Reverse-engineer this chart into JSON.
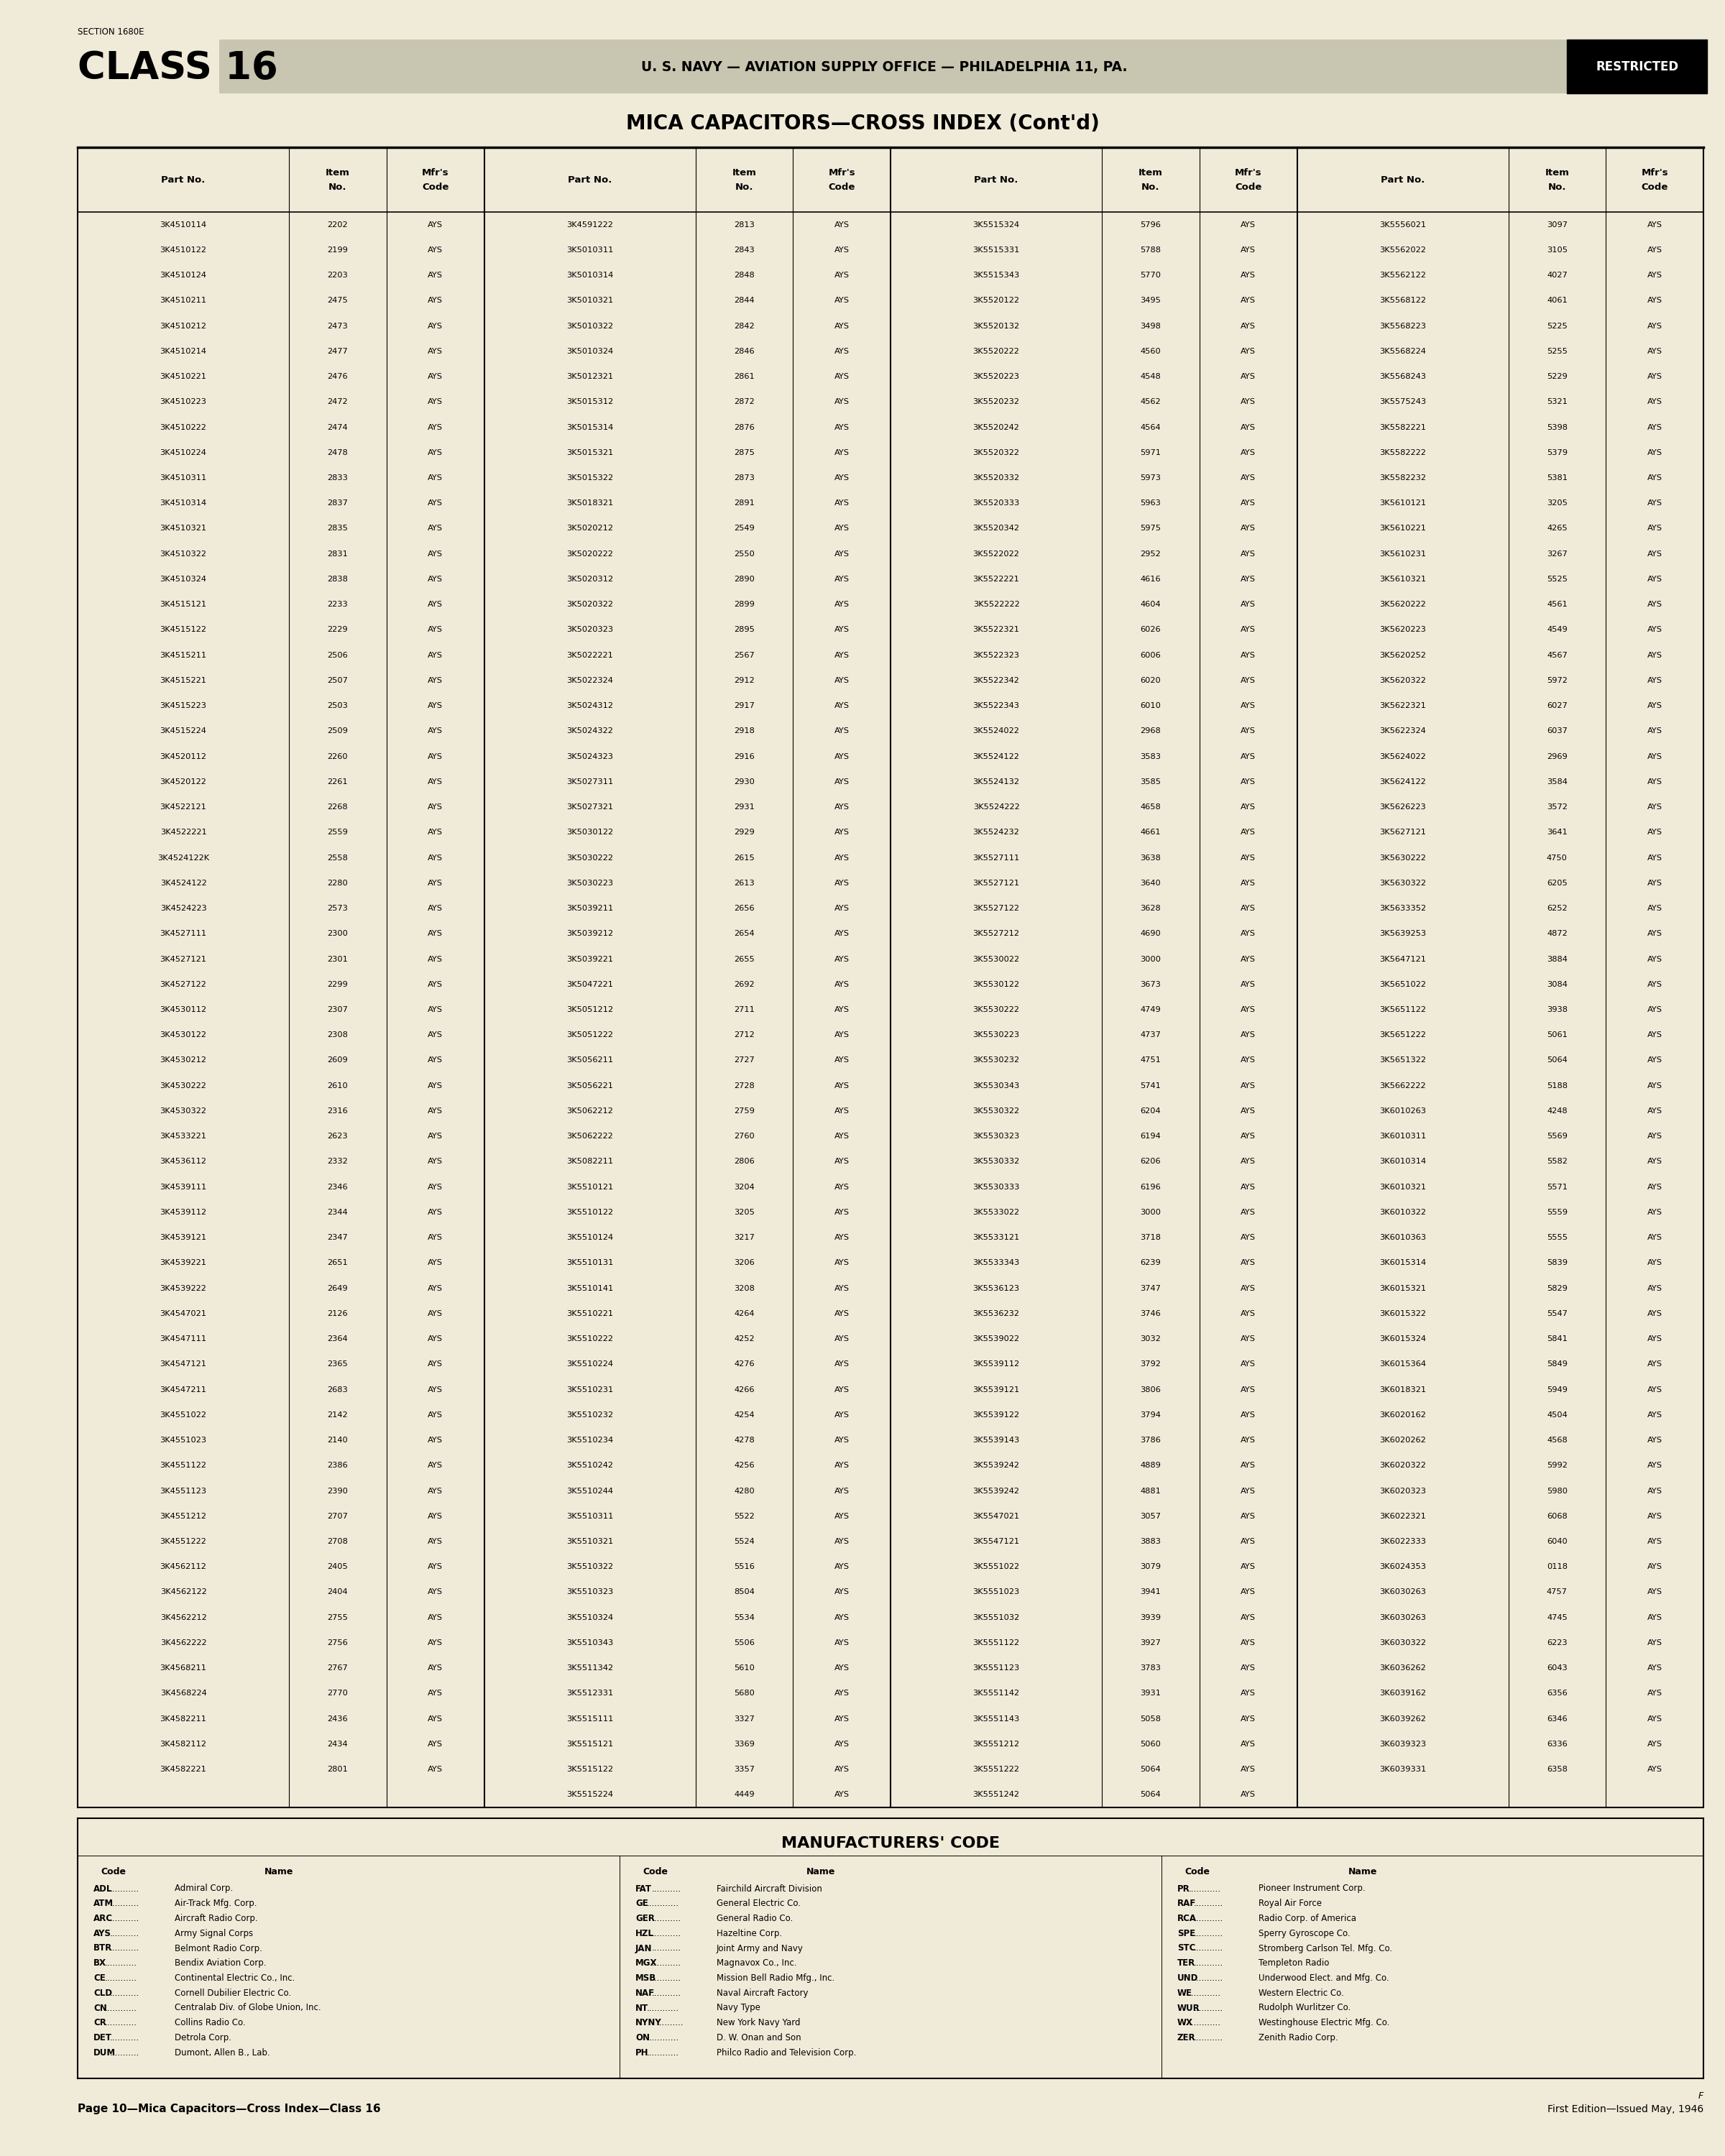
{
  "bg_color": "#f0ead8",
  "section_text": "SECTION 1680E",
  "class_text": "CLASS 16",
  "header_text": "U. S. NAVY — AVIATION SUPPLY OFFICE — PHILADELPHIA 11, PA.",
  "restricted_text": "RESTRICTED",
  "title": "MICA CAPACITORS—CROSS INDEX (Cont'd)",
  "table_data": [
    [
      "3K4510114",
      "2202",
      "AYS",
      "3K4591222",
      "2813",
      "AYS",
      "3K5515324",
      "5796",
      "AYS",
      "3K5556021",
      "3097",
      "AYS"
    ],
    [
      "3K4510122",
      "2199",
      "AYS",
      "3K5010311",
      "2843",
      "AYS",
      "3K5515331",
      "5788",
      "AYS",
      "3K5562022",
      "3105",
      "AYS"
    ],
    [
      "3K4510124",
      "2203",
      "AYS",
      "3K5010314",
      "2848",
      "AYS",
      "3K5515343",
      "5770",
      "AYS",
      "3K5562122",
      "4027",
      "AYS"
    ],
    [
      "3K4510211",
      "2475",
      "AYS",
      "3K5010321",
      "2844",
      "AYS",
      "3K5520122",
      "3495",
      "AYS",
      "3K5568122",
      "4061",
      "AYS"
    ],
    [
      "3K4510212",
      "2473",
      "AYS",
      "3K5010322",
      "2842",
      "AYS",
      "3K5520132",
      "3498",
      "AYS",
      "3K5568223",
      "5225",
      "AYS"
    ],
    [
      "3K4510214",
      "2477",
      "AYS",
      "3K5010324",
      "2846",
      "AYS",
      "3K5520222",
      "4560",
      "AYS",
      "3K5568224",
      "5255",
      "AYS"
    ],
    [
      "3K4510221",
      "2476",
      "AYS",
      "3K5012321",
      "2861",
      "AYS",
      "3K5520223",
      "4548",
      "AYS",
      "3K5568243",
      "5229",
      "AYS"
    ],
    [
      "3K4510223",
      "2472",
      "AYS",
      "3K5015312",
      "2872",
      "AYS",
      "3K5520232",
      "4562",
      "AYS",
      "3K5575243",
      "5321",
      "AYS"
    ],
    [
      "3K4510222",
      "2474",
      "AYS",
      "3K5015314",
      "2876",
      "AYS",
      "3K5520242",
      "4564",
      "AYS",
      "3K5582221",
      "5398",
      "AYS"
    ],
    [
      "3K4510224",
      "2478",
      "AYS",
      "3K5015321",
      "2875",
      "AYS",
      "3K5520322",
      "5971",
      "AYS",
      "3K5582222",
      "5379",
      "AYS"
    ],
    [
      "3K4510311",
      "2833",
      "AYS",
      "3K5015322",
      "2873",
      "AYS",
      "3K5520332",
      "5973",
      "AYS",
      "3K5582232",
      "5381",
      "AYS"
    ],
    [
      "3K4510314",
      "2837",
      "AYS",
      "3K5018321",
      "2891",
      "AYS",
      "3K5520333",
      "5963",
      "AYS",
      "3K5610121",
      "3205",
      "AYS"
    ],
    [
      "3K4510321",
      "2835",
      "AYS",
      "3K5020212",
      "2549",
      "AYS",
      "3K5520342",
      "5975",
      "AYS",
      "3K5610221",
      "4265",
      "AYS"
    ],
    [
      "3K4510322",
      "2831",
      "AYS",
      "3K5020222",
      "2550",
      "AYS",
      "3K5522022",
      "2952",
      "AYS",
      "3K5610231",
      "3267",
      "AYS"
    ],
    [
      "3K4510324",
      "2838",
      "AYS",
      "3K5020312",
      "2890",
      "AYS",
      "3K5522221",
      "4616",
      "AYS",
      "3K5610321",
      "5525",
      "AYS"
    ],
    [
      "3K4515121",
      "2233",
      "AYS",
      "3K5020322",
      "2899",
      "AYS",
      "3K5522222",
      "4604",
      "AYS",
      "3K5620222",
      "4561",
      "AYS"
    ],
    [
      "3K4515122",
      "2229",
      "AYS",
      "3K5020323",
      "2895",
      "AYS",
      "3K5522321",
      "6026",
      "AYS",
      "3K5620223",
      "4549",
      "AYS"
    ],
    [
      "3K4515211",
      "2506",
      "AYS",
      "3K5022221",
      "2567",
      "AYS",
      "3K5522323",
      "6006",
      "AYS",
      "3K5620252",
      "4567",
      "AYS"
    ],
    [
      "3K4515221",
      "2507",
      "AYS",
      "3K5022324",
      "2912",
      "AYS",
      "3K5522342",
      "6020",
      "AYS",
      "3K5620322",
      "5972",
      "AYS"
    ],
    [
      "3K4515223",
      "2503",
      "AYS",
      "3K5024312",
      "2917",
      "AYS",
      "3K5522343",
      "6010",
      "AYS",
      "3K5622321",
      "6027",
      "AYS"
    ],
    [
      "3K4515224",
      "2509",
      "AYS",
      "3K5024322",
      "2918",
      "AYS",
      "3K5524022",
      "2968",
      "AYS",
      "3K5622324",
      "6037",
      "AYS"
    ],
    [
      "3K4520112",
      "2260",
      "AYS",
      "3K5024323",
      "2916",
      "AYS",
      "3K5524122",
      "3583",
      "AYS",
      "3K5624022",
      "2969",
      "AYS"
    ],
    [
      "3K4520122",
      "2261",
      "AYS",
      "3K5027311",
      "2930",
      "AYS",
      "3K5524132",
      "3585",
      "AYS",
      "3K5624122",
      "3584",
      "AYS"
    ],
    [
      "3K4522121",
      "2268",
      "AYS",
      "3K5027321",
      "2931",
      "AYS",
      "3K5524222",
      "4658",
      "AYS",
      "3K5626223",
      "3572",
      "AYS"
    ],
    [
      "3K4522221",
      "2559",
      "AYS",
      "3K5030122",
      "2929",
      "AYS",
      "3K5524232",
      "4661",
      "AYS",
      "3K5627121",
      "3641",
      "AYS"
    ],
    [
      "3K4524122K",
      "2558",
      "AYS",
      "3K5030222",
      "2615",
      "AYS",
      "3K5527111",
      "3638",
      "AYS",
      "3K5630222",
      "4750",
      "AYS"
    ],
    [
      "3K4524122",
      "2280",
      "AYS",
      "3K5030223",
      "2613",
      "AYS",
      "3K5527121",
      "3640",
      "AYS",
      "3K5630322",
      "6205",
      "AYS"
    ],
    [
      "3K4524223",
      "2573",
      "AYS",
      "3K5039211",
      "2656",
      "AYS",
      "3K5527122",
      "3628",
      "AYS",
      "3K5633352",
      "6252",
      "AYS"
    ],
    [
      "3K4527111",
      "2300",
      "AYS",
      "3K5039212",
      "2654",
      "AYS",
      "3K5527212",
      "4690",
      "AYS",
      "3K5639253",
      "4872",
      "AYS"
    ],
    [
      "3K4527121",
      "2301",
      "AYS",
      "3K5039221",
      "2655",
      "AYS",
      "3K5530022",
      "3000",
      "AYS",
      "3K5647121",
      "3884",
      "AYS"
    ],
    [
      "3K4527122",
      "2299",
      "AYS",
      "3K5047221",
      "2692",
      "AYS",
      "3K5530122",
      "3673",
      "AYS",
      "3K5651022",
      "3084",
      "AYS"
    ],
    [
      "3K4530112",
      "2307",
      "AYS",
      "3K5051212",
      "2711",
      "AYS",
      "3K5530222",
      "4749",
      "AYS",
      "3K5651122",
      "3938",
      "AYS"
    ],
    [
      "3K4530122",
      "2308",
      "AYS",
      "3K5051222",
      "2712",
      "AYS",
      "3K5530223",
      "4737",
      "AYS",
      "3K5651222",
      "5061",
      "AYS"
    ],
    [
      "3K4530212",
      "2609",
      "AYS",
      "3K5056211",
      "2727",
      "AYS",
      "3K5530232",
      "4751",
      "AYS",
      "3K5651322",
      "5064",
      "AYS"
    ],
    [
      "3K4530222",
      "2610",
      "AYS",
      "3K5056221",
      "2728",
      "AYS",
      "3K5530343",
      "5741",
      "AYS",
      "3K5662222",
      "5188",
      "AYS"
    ],
    [
      "3K4530322",
      "2316",
      "AYS",
      "3K5062212",
      "2759",
      "AYS",
      "3K5530322",
      "6204",
      "AYS",
      "3K6010263",
      "4248",
      "AYS"
    ],
    [
      "3K4533221",
      "2623",
      "AYS",
      "3K5062222",
      "2760",
      "AYS",
      "3K5530323",
      "6194",
      "AYS",
      "3K6010311",
      "5569",
      "AYS"
    ],
    [
      "3K4536112",
      "2332",
      "AYS",
      "3K5082211",
      "2806",
      "AYS",
      "3K5530332",
      "6206",
      "AYS",
      "3K6010314",
      "5582",
      "AYS"
    ],
    [
      "3K4539111",
      "2346",
      "AYS",
      "3K5510121",
      "3204",
      "AYS",
      "3K5530333",
      "6196",
      "AYS",
      "3K6010321",
      "5571",
      "AYS"
    ],
    [
      "3K4539112",
      "2344",
      "AYS",
      "3K5510122",
      "3205",
      "AYS",
      "3K5533022",
      "3000",
      "AYS",
      "3K6010322",
      "5559",
      "AYS"
    ],
    [
      "3K4539121",
      "2347",
      "AYS",
      "3K5510124",
      "3217",
      "AYS",
      "3K5533121",
      "3718",
      "AYS",
      "3K6010363",
      "5555",
      "AYS"
    ],
    [
      "3K4539221",
      "2651",
      "AYS",
      "3K5510131",
      "3206",
      "AYS",
      "3K5533343",
      "6239",
      "AYS",
      "3K6015314",
      "5839",
      "AYS"
    ],
    [
      "3K4539222",
      "2649",
      "AYS",
      "3K5510141",
      "3208",
      "AYS",
      "3K5536123",
      "3747",
      "AYS",
      "3K6015321",
      "5829",
      "AYS"
    ],
    [
      "3K4547021",
      "2126",
      "AYS",
      "3K5510221",
      "4264",
      "AYS",
      "3K5536232",
      "3746",
      "AYS",
      "3K6015322",
      "5547",
      "AYS"
    ],
    [
      "3K4547111",
      "2364",
      "AYS",
      "3K5510222",
      "4252",
      "AYS",
      "3K5539022",
      "3032",
      "AYS",
      "3K6015324",
      "5841",
      "AYS"
    ],
    [
      "3K4547121",
      "2365",
      "AYS",
      "3K5510224",
      "4276",
      "AYS",
      "3K5539112",
      "3792",
      "AYS",
      "3K6015364",
      "5849",
      "AYS"
    ],
    [
      "3K4547211",
      "2683",
      "AYS",
      "3K5510231",
      "4266",
      "AYS",
      "3K5539121",
      "3806",
      "AYS",
      "3K6018321",
      "5949",
      "AYS"
    ],
    [
      "3K4551022",
      "2142",
      "AYS",
      "3K5510232",
      "4254",
      "AYS",
      "3K5539122",
      "3794",
      "AYS",
      "3K6020162",
      "4504",
      "AYS"
    ],
    [
      "3K4551023",
      "2140",
      "AYS",
      "3K5510234",
      "4278",
      "AYS",
      "3K5539143",
      "3786",
      "AYS",
      "3K6020262",
      "4568",
      "AYS"
    ],
    [
      "3K4551122",
      "2386",
      "AYS",
      "3K5510242",
      "4256",
      "AYS",
      "3K5539242",
      "4889",
      "AYS",
      "3K6020322",
      "5992",
      "AYS"
    ],
    [
      "3K4551123",
      "2390",
      "AYS",
      "3K5510244",
      "4280",
      "AYS",
      "3K5539242",
      "4881",
      "AYS",
      "3K6020323",
      "5980",
      "AYS"
    ],
    [
      "3K4551212",
      "2707",
      "AYS",
      "3K5510311",
      "5522",
      "AYS",
      "3K5547021",
      "3057",
      "AYS",
      "3K6022321",
      "6068",
      "AYS"
    ],
    [
      "3K4551222",
      "2708",
      "AYS",
      "3K5510321",
      "5524",
      "AYS",
      "3K5547121",
      "3883",
      "AYS",
      "3K6022333",
      "6040",
      "AYS"
    ],
    [
      "3K4562112",
      "2405",
      "AYS",
      "3K5510322",
      "5516",
      "AYS",
      "3K5551022",
      "3079",
      "AYS",
      "3K6024353",
      "0118",
      "AYS"
    ],
    [
      "3K4562122",
      "2404",
      "AYS",
      "3K5510323",
      "8504",
      "AYS",
      "3K5551023",
      "3941",
      "AYS",
      "3K6030263",
      "4757",
      "AYS"
    ],
    [
      "3K4562212",
      "2755",
      "AYS",
      "3K5510324",
      "5534",
      "AYS",
      "3K5551032",
      "3939",
      "AYS",
      "3K6030263",
      "4745",
      "AYS"
    ],
    [
      "3K4562222",
      "2756",
      "AYS",
      "3K5510343",
      "5506",
      "AYS",
      "3K5551122",
      "3927",
      "AYS",
      "3K6030322",
      "6223",
      "AYS"
    ],
    [
      "3K4568211",
      "2767",
      "AYS",
      "3K5511342",
      "5610",
      "AYS",
      "3K5551123",
      "3783",
      "AYS",
      "3K6036262",
      "6043",
      "AYS"
    ],
    [
      "3K4568224",
      "2770",
      "AYS",
      "3K5512331",
      "5680",
      "AYS",
      "3K5551142",
      "3931",
      "AYS",
      "3K6039162",
      "6356",
      "AYS"
    ],
    [
      "3K4582211",
      "2436",
      "AYS",
      "3K5515111",
      "3327",
      "AYS",
      "3K5551143",
      "5058",
      "AYS",
      "3K6039262",
      "6346",
      "AYS"
    ],
    [
      "3K4582112",
      "2434",
      "AYS",
      "3K5515121",
      "3369",
      "AYS",
      "3K5551212",
      "5060",
      "AYS",
      "3K6039323",
      "6336",
      "AYS"
    ],
    [
      "3K4582221",
      "2801",
      "AYS",
      "3K5515122",
      "3357",
      "AYS",
      "3K5551222",
      "5064",
      "AYS",
      "3K6039331",
      "6358",
      "AYS"
    ],
    [
      "",
      "",
      "",
      "3K5515224",
      "4449",
      "AYS",
      "3K5551242",
      "5064",
      "AYS",
      "",
      "",
      ""
    ]
  ],
  "mfr_title": "MANUFACTURERS' CODE",
  "mfr_cols": [
    [
      [
        "ADL",
        "Admiral Corp."
      ],
      [
        "ATM",
        "Air-Track Mfg. Corp."
      ],
      [
        "ARC",
        "Aircraft Radio Corp."
      ],
      [
        "AYS",
        "Army Signal Corps"
      ],
      [
        "BTR",
        "Belmont Radio Corp."
      ],
      [
        "BX",
        "Bendix Aviation Corp."
      ],
      [
        "CE",
        "Continental Electric Co., Inc."
      ],
      [
        "CLD",
        "Cornell Dubilier Electric Co."
      ],
      [
        "CN",
        "Centralab Div. of Globe Union, Inc."
      ],
      [
        "CR",
        "Collins Radio Co."
      ],
      [
        "DET",
        "Detrola Corp."
      ],
      [
        "DUM",
        "Dumont, Allen B., Lab."
      ]
    ],
    [
      [
        "FAT",
        "Fairchild Aircraft Division"
      ],
      [
        "GE",
        "General Electric Co."
      ],
      [
        "GER",
        "General Radio Co."
      ],
      [
        "HZL",
        "Hazeltine Corp."
      ],
      [
        "JAN",
        "Joint Army and Navy"
      ],
      [
        "MGX",
        "Magnavox Co., Inc."
      ],
      [
        "MSB",
        "Mission Bell Radio Mfg., Inc."
      ],
      [
        "NAF",
        "Naval Aircraft Factory"
      ],
      [
        "NT",
        "Navy Type"
      ],
      [
        "NYNY",
        "New York Navy Yard"
      ],
      [
        "ON",
        "D. W. Onan and Son"
      ],
      [
        "PH",
        "Philco Radio and Television Corp."
      ]
    ],
    [
      [
        "PR",
        "Pioneer Instrument Corp."
      ],
      [
        "RAF",
        "Royal Air Force"
      ],
      [
        "RCA",
        "Radio Corp. of America"
      ],
      [
        "SPE",
        "Sperry Gyroscope Co."
      ],
      [
        "STC",
        "Stromberg Carlson Tel. Mfg. Co."
      ],
      [
        "TER",
        "Templeton Radio"
      ],
      [
        "UND",
        "Underwood Elect. and Mfg. Co."
      ],
      [
        "WE",
        "Western Electric Co."
      ],
      [
        "WUR",
        "Rudolph Wurlitzer Co."
      ],
      [
        "WX",
        "Westinghouse Electric Mfg. Co."
      ],
      [
        "ZER",
        "Zenith Radio Corp."
      ]
    ]
  ],
  "footer_left": "Page 10—Mica Capacitors—Cross Index—Class 16",
  "footer_right": "First Edition—Issued May, 1946",
  "footer_f": "F"
}
